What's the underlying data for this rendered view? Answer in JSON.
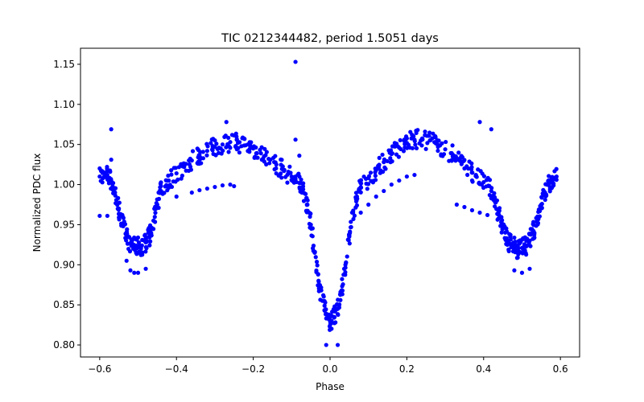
{
  "chart_data": {
    "type": "scatter",
    "title": "TIC 0212344482, period 1.5051 days",
    "xlabel": "Phase",
    "ylabel": "Normalized PDC flux",
    "xlim": [
      -0.65,
      0.65
    ],
    "ylim": [
      0.785,
      1.17
    ],
    "xticks": [
      -0.6,
      -0.4,
      -0.2,
      0.0,
      0.2,
      0.4,
      0.6
    ],
    "xtick_labels": [
      "−0.6",
      "−0.4",
      "−0.2",
      "0.0",
      "0.2",
      "0.4",
      "0.6"
    ],
    "yticks": [
      0.8,
      0.85,
      0.9,
      0.95,
      1.0,
      1.05,
      1.1,
      1.15
    ],
    "ytick_labels": [
      "0.80",
      "0.85",
      "0.90",
      "0.95",
      "1.00",
      "1.05",
      "1.10",
      "1.15"
    ],
    "grid": false,
    "marker_color": "#0000ff",
    "series": [
      {
        "main_curve": [
          [
            -0.6,
            1.01
          ],
          [
            -0.59,
            1.015
          ],
          [
            -0.58,
            1.012
          ],
          [
            -0.57,
            1.005
          ],
          [
            -0.56,
            0.99
          ],
          [
            -0.55,
            0.97
          ],
          [
            -0.54,
            0.95
          ],
          [
            -0.53,
            0.935
          ],
          [
            -0.52,
            0.927
          ],
          [
            -0.51,
            0.923
          ],
          [
            -0.5,
            0.922
          ],
          [
            -0.49,
            0.924
          ],
          [
            -0.48,
            0.928
          ],
          [
            -0.47,
            0.936
          ],
          [
            -0.46,
            0.955
          ],
          [
            -0.45,
            0.975
          ],
          [
            -0.44,
            0.992
          ],
          [
            -0.42,
            1.005
          ],
          [
            -0.4,
            1.014
          ],
          [
            -0.38,
            1.022
          ],
          [
            -0.36,
            1.03
          ],
          [
            -0.34,
            1.037
          ],
          [
            -0.32,
            1.042
          ],
          [
            -0.3,
            1.047
          ],
          [
            -0.28,
            1.05
          ],
          [
            -0.26,
            1.053
          ],
          [
            -0.24,
            1.052
          ],
          [
            -0.22,
            1.049
          ],
          [
            -0.2,
            1.045
          ],
          [
            -0.18,
            1.039
          ],
          [
            -0.16,
            1.032
          ],
          [
            -0.14,
            1.025
          ],
          [
            -0.12,
            1.017
          ],
          [
            -0.1,
            1.01
          ],
          [
            -0.08,
            1.002
          ],
          [
            -0.07,
            0.994
          ],
          [
            -0.06,
            0.975
          ],
          [
            -0.05,
            0.95
          ],
          [
            -0.04,
            0.915
          ],
          [
            -0.03,
            0.88
          ],
          [
            -0.02,
            0.855
          ],
          [
            -0.01,
            0.838
          ],
          [
            0.0,
            0.83
          ],
          [
            0.01,
            0.835
          ],
          [
            0.02,
            0.845
          ],
          [
            0.03,
            0.868
          ],
          [
            0.04,
            0.9
          ],
          [
            0.05,
            0.935
          ],
          [
            0.06,
            0.965
          ],
          [
            0.07,
            0.985
          ],
          [
            0.08,
            0.997
          ],
          [
            0.1,
            1.008
          ],
          [
            0.12,
            1.018
          ],
          [
            0.14,
            1.028
          ],
          [
            0.16,
            1.038
          ],
          [
            0.18,
            1.046
          ],
          [
            0.2,
            1.052
          ],
          [
            0.22,
            1.056
          ],
          [
            0.24,
            1.057
          ],
          [
            0.26,
            1.055
          ],
          [
            0.28,
            1.05
          ],
          [
            0.3,
            1.044
          ],
          [
            0.32,
            1.037
          ],
          [
            0.34,
            1.029
          ],
          [
            0.36,
            1.02
          ],
          [
            0.38,
            1.012
          ],
          [
            0.4,
            1.003
          ],
          [
            0.42,
            0.992
          ],
          [
            0.43,
            0.978
          ],
          [
            0.44,
            0.962
          ],
          [
            0.45,
            0.945
          ],
          [
            0.46,
            0.933
          ],
          [
            0.47,
            0.926
          ],
          [
            0.48,
            0.922
          ],
          [
            0.49,
            0.92
          ],
          [
            0.5,
            0.921
          ],
          [
            0.51,
            0.924
          ],
          [
            0.52,
            0.93
          ],
          [
            0.53,
            0.942
          ],
          [
            0.54,
            0.958
          ],
          [
            0.55,
            0.975
          ],
          [
            0.56,
            0.99
          ],
          [
            0.57,
            1.0
          ],
          [
            0.58,
            1.006
          ],
          [
            0.59,
            1.01
          ]
        ]
      },
      {
        "offset_points": [
          [
            -0.4,
            0.985
          ],
          [
            -0.36,
            0.99
          ],
          [
            -0.34,
            0.993
          ],
          [
            -0.32,
            0.995
          ],
          [
            -0.3,
            0.997
          ],
          [
            -0.28,
            0.999
          ],
          [
            -0.26,
            1.0
          ],
          [
            0.08,
            0.965
          ],
          [
            0.1,
            0.975
          ],
          [
            0.12,
            0.985
          ],
          [
            0.14,
            0.992
          ],
          [
            0.16,
            1.0
          ],
          [
            0.18,
            1.005
          ],
          [
            0.2,
            1.01
          ],
          [
            0.22,
            1.012
          ],
          [
            0.33,
            0.975
          ],
          [
            0.35,
            0.972
          ],
          [
            0.37,
            0.968
          ],
          [
            0.39,
            0.965
          ],
          [
            0.41,
            0.962
          ]
        ]
      },
      {
        "outliers": [
          [
            -0.09,
            1.153
          ],
          [
            -0.57,
            1.069
          ],
          [
            -0.09,
            1.056
          ],
          [
            -0.08,
            1.036
          ],
          [
            -0.57,
            1.031
          ],
          [
            0.39,
            1.078
          ],
          [
            0.42,
            1.069
          ],
          [
            -0.6,
            0.961
          ],
          [
            -0.58,
            0.961
          ],
          [
            -0.55,
            0.959
          ],
          [
            -0.53,
            0.905
          ],
          [
            -0.51,
            0.89
          ],
          [
            -0.5,
            0.89
          ],
          [
            -0.48,
            0.895
          ],
          [
            -0.52,
            0.893
          ],
          [
            0.48,
            0.893
          ],
          [
            0.5,
            0.89
          ],
          [
            0.52,
            0.895
          ],
          [
            -0.01,
            0.8
          ],
          [
            0.02,
            0.8
          ],
          [
            -0.27,
            1.078
          ],
          [
            -0.25,
            0.998
          ]
        ]
      }
    ]
  }
}
